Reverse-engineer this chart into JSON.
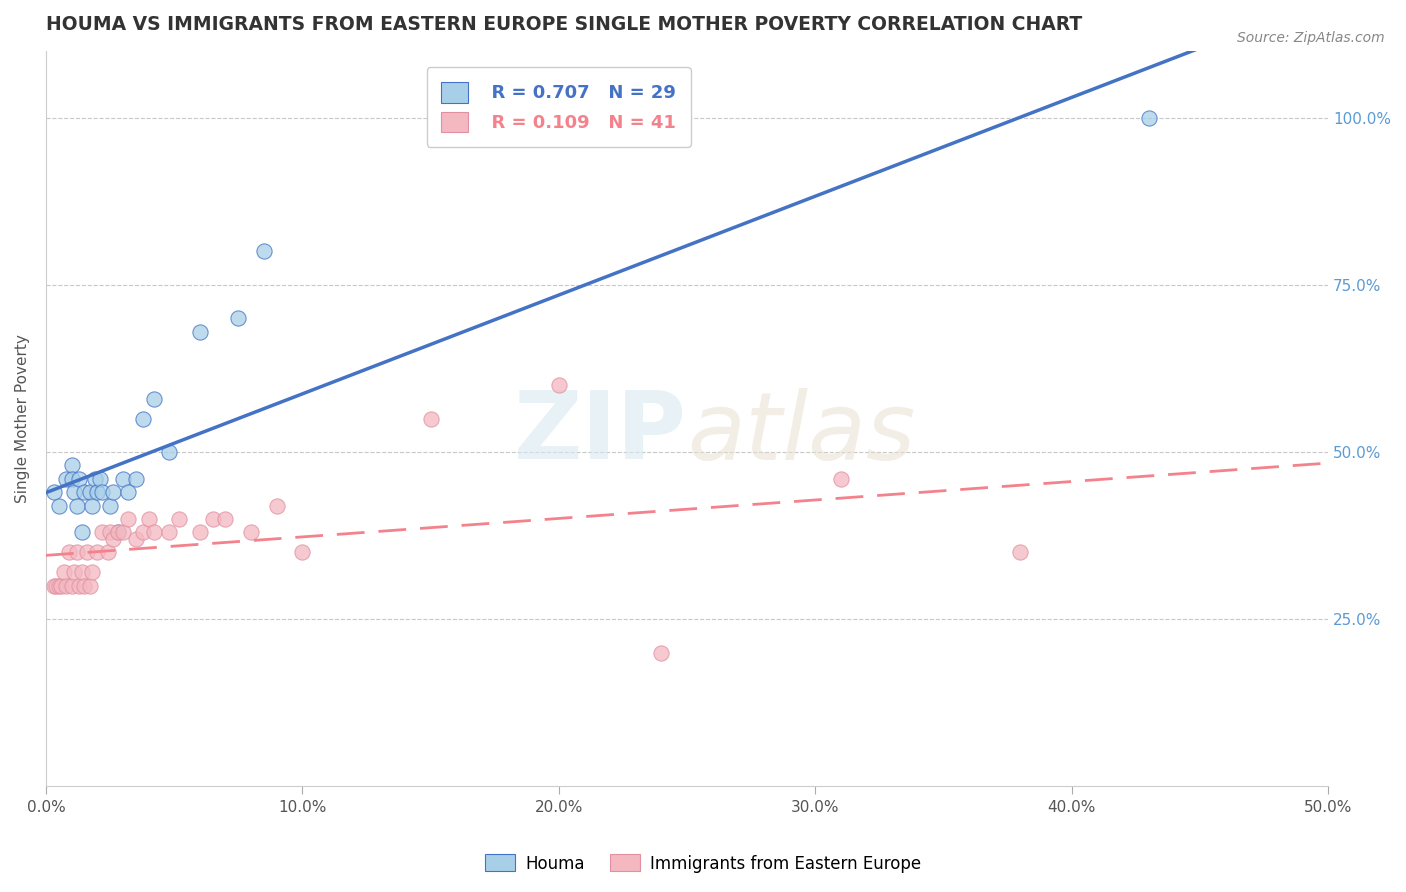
{
  "title": "HOUMA VS IMMIGRANTS FROM EASTERN EUROPE SINGLE MOTHER POVERTY CORRELATION CHART",
  "source_text": "Source: ZipAtlas.com",
  "ylabel": "Single Mother Poverty",
  "legend_label_1": "Houma",
  "legend_label_2": "Immigrants from Eastern Europe",
  "r1": 0.707,
  "n1": 29,
  "r2": 0.109,
  "n2": 41,
  "color1": "#a8cfe8",
  "color2": "#f4b8c1",
  "line_color1": "#4472c4",
  "line_color2": "#f4828c",
  "xmin": 0.0,
  "xmax": 0.5,
  "ymin": 0.0,
  "ymax": 1.1,
  "ytick_positions": [
    0.25,
    0.5,
    0.75,
    1.0
  ],
  "ytick_labels": [
    "25.0%",
    "50.0%",
    "75.0%",
    "100.0%"
  ],
  "xtick_positions": [
    0.0,
    0.1,
    0.2,
    0.3,
    0.4,
    0.5
  ],
  "xtick_labels": [
    "0.0%",
    "10.0%",
    "20.0%",
    "30.0%",
    "40.0%",
    "50.0%"
  ],
  "houma_x": [
    0.003,
    0.005,
    0.008,
    0.01,
    0.01,
    0.011,
    0.012,
    0.013,
    0.014,
    0.015,
    0.017,
    0.018,
    0.019,
    0.02,
    0.021,
    0.022,
    0.025,
    0.026,
    0.028,
    0.03,
    0.032,
    0.035,
    0.038,
    0.042,
    0.048,
    0.06,
    0.075,
    0.085,
    0.43
  ],
  "houma_y": [
    0.44,
    0.42,
    0.46,
    0.48,
    0.46,
    0.44,
    0.42,
    0.46,
    0.38,
    0.44,
    0.44,
    0.42,
    0.46,
    0.44,
    0.46,
    0.44,
    0.42,
    0.44,
    0.38,
    0.46,
    0.44,
    0.46,
    0.55,
    0.58,
    0.5,
    0.68,
    0.7,
    0.8,
    1.0
  ],
  "immigrants_x": [
    0.003,
    0.004,
    0.005,
    0.006,
    0.007,
    0.008,
    0.009,
    0.01,
    0.011,
    0.012,
    0.013,
    0.014,
    0.015,
    0.016,
    0.017,
    0.018,
    0.02,
    0.022,
    0.024,
    0.025,
    0.026,
    0.028,
    0.03,
    0.032,
    0.035,
    0.038,
    0.04,
    0.042,
    0.048,
    0.052,
    0.06,
    0.065,
    0.07,
    0.08,
    0.09,
    0.1,
    0.15,
    0.2,
    0.24,
    0.31,
    0.38
  ],
  "immigrants_y": [
    0.3,
    0.3,
    0.3,
    0.3,
    0.32,
    0.3,
    0.35,
    0.3,
    0.32,
    0.35,
    0.3,
    0.32,
    0.3,
    0.35,
    0.3,
    0.32,
    0.35,
    0.38,
    0.35,
    0.38,
    0.37,
    0.38,
    0.38,
    0.4,
    0.37,
    0.38,
    0.4,
    0.38,
    0.38,
    0.4,
    0.38,
    0.4,
    0.4,
    0.38,
    0.42,
    0.35,
    0.55,
    0.6,
    0.2,
    0.46,
    0.35
  ],
  "watermark_zip": "ZIP",
  "watermark_atlas": "atlas",
  "background_color": "#ffffff",
  "grid_color": "#c8c8c8",
  "axis_color": "#999999",
  "tick_color": "#5b9bd5",
  "title_color": "#333333",
  "title_fontsize": 13.5,
  "ylabel_fontsize": 11,
  "tick_fontsize": 11
}
